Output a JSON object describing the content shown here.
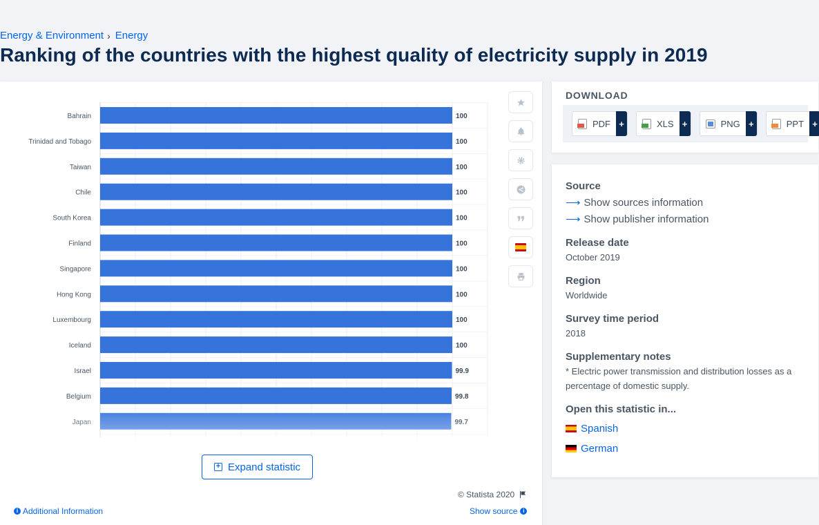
{
  "breadcrumb": {
    "items": [
      "Energy & Environment",
      "Energy"
    ],
    "separator": "›"
  },
  "page_title": "Ranking of the countries with the highest quality of electricity supply in 2019",
  "chart_data": {
    "type": "bar",
    "orientation": "horizontal",
    "categories": [
      "Bahrain",
      "Trinidad and Tobago",
      "Taiwan",
      "Chile",
      "South Korea",
      "Finland",
      "Singapore",
      "Hong Kong",
      "Luxembourg",
      "Iceland",
      "Israel",
      "Belgium",
      "Japan"
    ],
    "values": [
      100,
      100,
      100,
      100,
      100,
      100,
      100,
      100,
      100,
      100,
      99.9,
      99.8,
      99.7
    ],
    "value_labels": [
      "100",
      "100",
      "100",
      "100",
      "100",
      "100",
      "100",
      "100",
      "100",
      "100",
      "99.9",
      "99.8",
      "99.7"
    ],
    "xlim": [
      0,
      110
    ],
    "bar_color": "#3674dc",
    "grid": true,
    "legend": "none"
  },
  "tools": {
    "icons": [
      "star-icon",
      "bell-icon",
      "gear-icon",
      "share-icon",
      "quote-icon",
      "spanish-flag-icon",
      "print-icon"
    ]
  },
  "expand_button": {
    "label": "Expand statistic"
  },
  "footer": {
    "copyright": "© Statista 2020",
    "additional_info": "Additional Information",
    "show_source": "Show source"
  },
  "download": {
    "title": "DOWNLOAD",
    "buttons": [
      {
        "label": "PDF",
        "color": "#e2574c"
      },
      {
        "label": "XLS",
        "color": "#43a047"
      },
      {
        "label": "PNG",
        "color": "#5b8dd6"
      },
      {
        "label": "PPT",
        "color": "#f08a3c"
      }
    ],
    "plus": "+"
  },
  "info": {
    "source_heading": "Source",
    "show_sources": "Show sources information",
    "show_publisher": "Show publisher information",
    "release_heading": "Release date",
    "release_value": "October 2019",
    "region_heading": "Region",
    "region_value": "Worldwide",
    "survey_heading": "Survey time period",
    "survey_value": "2018",
    "notes_heading": "Supplementary notes",
    "notes_value": "* Electric power transmission and distribution losses as a percentage of domestic supply.",
    "open_heading": "Open this statistic in...",
    "languages": [
      "Spanish",
      "German"
    ]
  }
}
